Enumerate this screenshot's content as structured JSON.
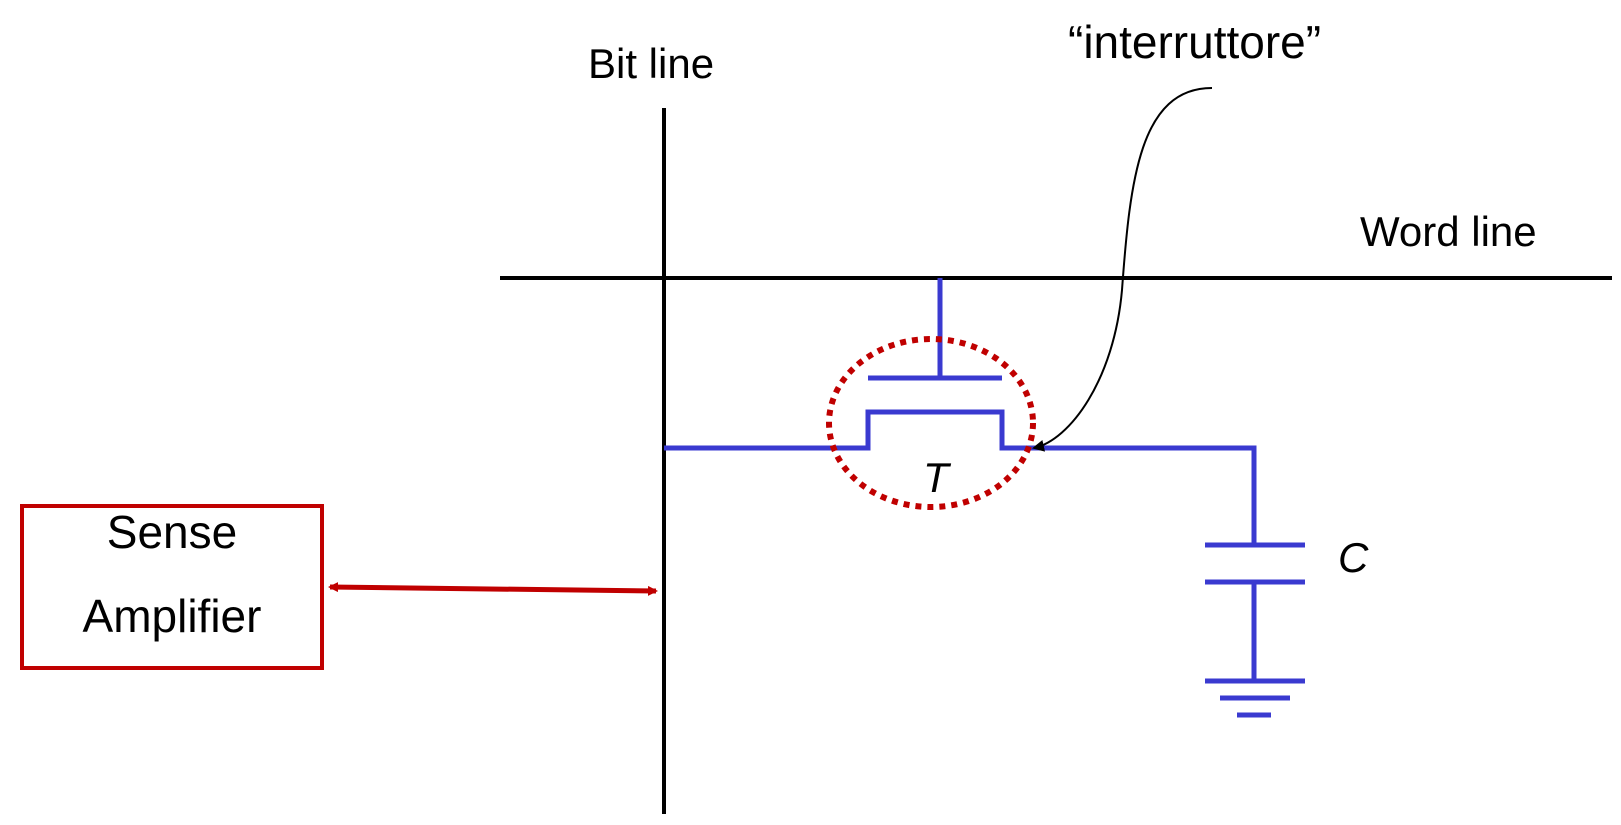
{
  "labels": {
    "bit_line": "Bit line",
    "word_line": "Word line",
    "switch_note": "“interruttore”",
    "transistor": "T",
    "capacitor": "C",
    "sense_amp_line1": "Sense",
    "sense_amp_line2": "Amplifier"
  },
  "colors": {
    "wire": "#000000",
    "circuit": "#3a3ad0",
    "highlight": "#c00000"
  }
}
